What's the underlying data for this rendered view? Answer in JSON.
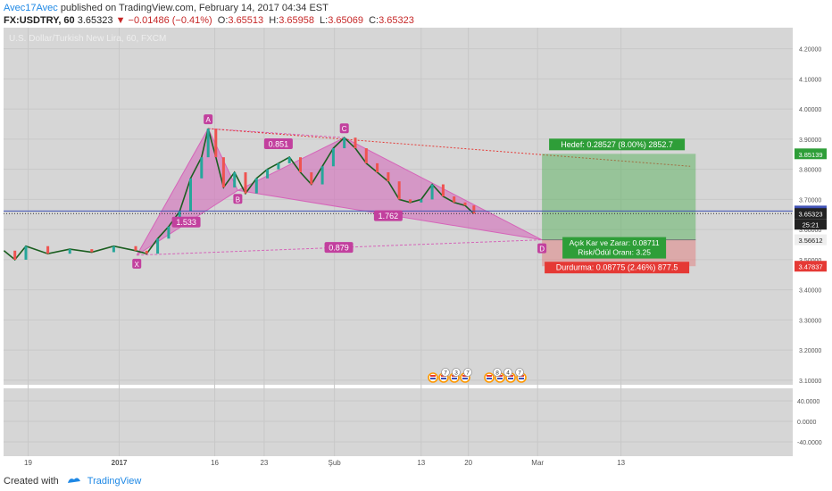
{
  "header": {
    "author": "Avec17Avec",
    "published_text": "published on TradingView.com, February 14, 2017 04:34 EST",
    "symbol": "FX:USDTRY, 60",
    "last": "3.65323",
    "change": "−0.01486 (−0.41%)",
    "o_label": "O:",
    "o": "3.65513",
    "h_label": "H:",
    "h": "3.65958",
    "l_label": "L:",
    "l": "3.65069",
    "c_label": "C:",
    "c": "3.65323"
  },
  "legend_text": "U.S. Dollar/Turkish New Lira, 60, FXCM",
  "footer": {
    "created_with": "Created with",
    "brand": "TradingView"
  },
  "colors": {
    "pattern": "#d565b9",
    "target": "#4caf50",
    "stop": "#e57373",
    "up": "#26a69a",
    "down": "#ef5350",
    "price_line": "#3f51b5"
  },
  "chart_data": {
    "type": "line",
    "title": "U.S. Dollar/Turkish New Lira, 60, FXCM",
    "y_ticks": [
      "4.20000",
      "4.10000",
      "4.00000",
      "3.90000",
      "3.80000",
      "3.70000",
      "3.60000",
      "3.50000",
      "3.40000",
      "3.30000",
      "3.20000",
      "3.10000"
    ],
    "y_range": [
      3.085,
      4.27
    ],
    "x_ticks": [
      "19",
      "2017",
      "16",
      "23",
      "Şub",
      "13",
      "20",
      "Mar",
      "13"
    ],
    "osc_ticks": [
      "40.0000",
      "0.0000",
      "-40.0000"
    ],
    "price_series": [
      {
        "t": 0,
        "v": 3.53
      },
      {
        "t": 1,
        "v": 3.5
      },
      {
        "t": 2,
        "v": 3.545
      },
      {
        "t": 4,
        "v": 3.52
      },
      {
        "t": 6,
        "v": 3.535
      },
      {
        "t": 8,
        "v": 3.525
      },
      {
        "t": 10,
        "v": 3.545
      },
      {
        "t": 12,
        "v": 3.53
      },
      {
        "t": 13,
        "v": 3.52
      },
      {
        "t": 14,
        "v": 3.57
      },
      {
        "t": 15,
        "v": 3.61
      },
      {
        "t": 16,
        "v": 3.66
      },
      {
        "t": 17,
        "v": 3.77
      },
      {
        "t": 18,
        "v": 3.84
      },
      {
        "t": 18.6,
        "v": 3.935
      },
      {
        "t": 19.3,
        "v": 3.84
      },
      {
        "t": 20,
        "v": 3.74
      },
      {
        "t": 21,
        "v": 3.79
      },
      {
        "t": 22,
        "v": 3.72
      },
      {
        "t": 23,
        "v": 3.77
      },
      {
        "t": 24,
        "v": 3.8
      },
      {
        "t": 25,
        "v": 3.82
      },
      {
        "t": 26,
        "v": 3.84
      },
      {
        "t": 27,
        "v": 3.79
      },
      {
        "t": 28,
        "v": 3.75
      },
      {
        "t": 29,
        "v": 3.81
      },
      {
        "t": 30,
        "v": 3.87
      },
      {
        "t": 31,
        "v": 3.905
      },
      {
        "t": 32,
        "v": 3.87
      },
      {
        "t": 33,
        "v": 3.82
      },
      {
        "t": 34,
        "v": 3.79
      },
      {
        "t": 35,
        "v": 3.76
      },
      {
        "t": 36,
        "v": 3.7
      },
      {
        "t": 37,
        "v": 3.69
      },
      {
        "t": 38,
        "v": 3.7
      },
      {
        "t": 39,
        "v": 3.75
      },
      {
        "t": 40,
        "v": 3.71
      },
      {
        "t": 41,
        "v": 3.69
      },
      {
        "t": 42,
        "v": 3.68
      },
      {
        "t": 42.8,
        "v": 3.653
      }
    ],
    "pattern_points": [
      {
        "label": "X",
        "t": 12.1,
        "v": 3.515
      },
      {
        "label": "A",
        "t": 18.6,
        "v": 3.935
      },
      {
        "label": "B",
        "t": 21.3,
        "v": 3.73
      },
      {
        "label": "C",
        "t": 31,
        "v": 3.905
      },
      {
        "label": "D",
        "t": 49,
        "v": 3.566
      }
    ],
    "ratios": [
      {
        "label": "1.533"
      },
      {
        "label": "0.851"
      },
      {
        "label": "1.762"
      },
      {
        "label": "0.879"
      }
    ],
    "ratio_positions": [
      {
        "t": 16.6,
        "v": 3.625
      },
      {
        "t": 25,
        "v": 3.885
      },
      {
        "t": 35,
        "v": 3.646
      },
      {
        "t": 30.5,
        "v": 3.541
      }
    ],
    "trend_line": [
      {
        "t": 18.6,
        "v": 3.935
      },
      {
        "t": 62.5,
        "v": 3.81
      }
    ],
    "position": {
      "start_t": 49,
      "end_t": 63,
      "entry": 3.56612,
      "target": 3.85139,
      "stop": 3.47837,
      "target_label": "Hedef: 0.28527 (8.00%) 2852.7",
      "open_pl_label": "Açık Kar ve Zarar: 0.08711",
      "risk_reward_label": "Risk/Ödül Oranı: 3.25",
      "stop_label": "Durdurma: 0.08775 (2.46%) 877.5"
    },
    "price_tags": [
      {
        "value": "3.85139",
        "kind": "target"
      },
      {
        "value": "3.66166",
        "kind": "blue"
      },
      {
        "value": "3.65323",
        "kind": "last"
      },
      {
        "value": "25:21",
        "kind": "timer"
      },
      {
        "value": "3.56612",
        "kind": "entry"
      },
      {
        "value": "3.47837",
        "kind": "stop"
      }
    ],
    "events": [
      "7",
      "3",
      "7",
      "8",
      "4",
      "7"
    ]
  }
}
